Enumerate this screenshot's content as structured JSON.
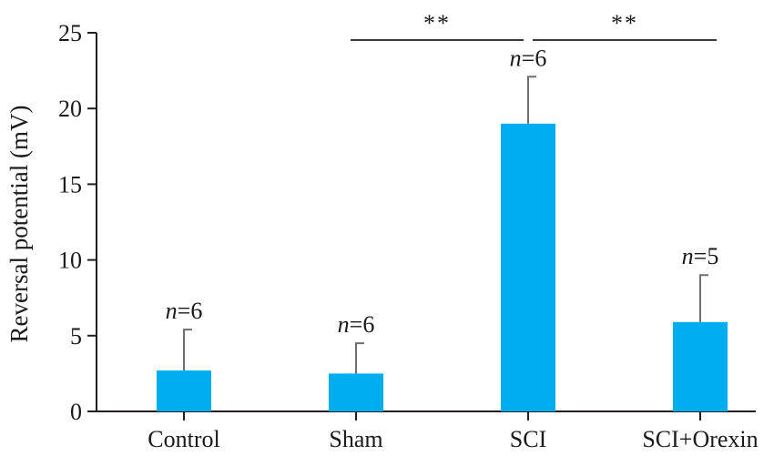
{
  "chart_data": {
    "type": "bar",
    "ylabel": "Reversal potential (mV)",
    "xlabel": "",
    "ylim": [
      0,
      25
    ],
    "yticks": [
      0,
      5,
      10,
      15,
      20,
      25
    ],
    "categories": [
      "Control",
      "Sham",
      "SCI",
      "SCI+Orexin"
    ],
    "values": [
      2.7,
      2.5,
      19.0,
      5.9
    ],
    "errors": [
      2.7,
      2.0,
      3.1,
      3.1
    ],
    "n_labels": [
      {
        "italic": "n",
        "rest": "=6"
      },
      {
        "italic": "n",
        "rest": "=6"
      },
      {
        "italic": "n",
        "rest": "=6"
      },
      {
        "italic": "n",
        "rest": "=5"
      }
    ],
    "significance": [
      {
        "from": 1,
        "to": 2,
        "label": "**"
      },
      {
        "from": 2,
        "to": 3,
        "label": "**"
      }
    ],
    "bar_color": "#00aeef",
    "error_color": "#6d6e71",
    "axis_color": "#231f20",
    "grid": false
  }
}
